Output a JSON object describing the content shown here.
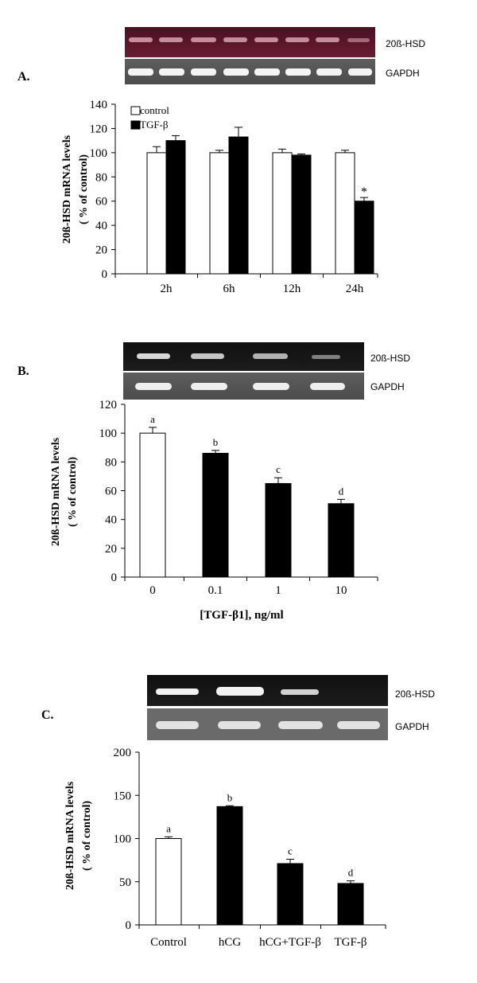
{
  "chart_data": [
    {
      "type": "bar",
      "panel_label": "A.",
      "categories": [
        "2h",
        "6h",
        "12h",
        "24h"
      ],
      "series": [
        {
          "name": "control",
          "values": [
            100,
            100,
            100,
            100
          ],
          "errors": [
            5,
            2,
            3,
            2
          ],
          "color": "#ffffff"
        },
        {
          "name": "TGF-β",
          "values": [
            110,
            113,
            98,
            60
          ],
          "errors": [
            4,
            8,
            1,
            3
          ],
          "color": "#000000"
        }
      ],
      "annotations": [
        "*"
      ],
      "ylabel": "20ß-HSD  mRNA levels",
      "ylabel2": "( % of control)",
      "xlabel": "",
      "ylim": [
        0,
        140
      ],
      "yticks": [
        "0",
        "20",
        "40",
        "60",
        "80",
        "100",
        "120",
        "140"
      ],
      "legend_position": "top-left",
      "gel_labels": [
        "20ß-HSD",
        "GAPDH"
      ]
    },
    {
      "type": "bar",
      "panel_label": "B.",
      "categories": [
        "0",
        "0.1",
        "1",
        "10"
      ],
      "series": [
        {
          "values": [
            100,
            86,
            65,
            51
          ],
          "errors": [
            4,
            2,
            4,
            3
          ]
        }
      ],
      "colors": [
        "#ffffff",
        "#000000",
        "#000000",
        "#000000"
      ],
      "bar_letters": [
        "a",
        "b",
        "c",
        "d"
      ],
      "ylabel": "20ß-HSD  mRNA levels",
      "ylabel2": "( % of control)",
      "xlabel": "[TGF-β1], ng/ml",
      "ylim": [
        0,
        120
      ],
      "yticks": [
        "0",
        "20",
        "40",
        "60",
        "80",
        "100",
        "120"
      ],
      "gel_labels": [
        "20ß-HSD",
        "GAPDH"
      ]
    },
    {
      "type": "bar",
      "panel_label": "C.",
      "categories": [
        "Control",
        "hCG",
        "hCG+TGF-β",
        "TGF-β"
      ],
      "series": [
        {
          "values": [
            100,
            137,
            71,
            48
          ],
          "errors": [
            2,
            1,
            5,
            3
          ]
        }
      ],
      "colors": [
        "#ffffff",
        "#000000",
        "#000000",
        "#000000"
      ],
      "bar_letters": [
        "a",
        "b",
        "c",
        "d"
      ],
      "ylabel": "20ß-HSD  mRNA levels",
      "ylabel2": "( % of control)",
      "xlabel": "",
      "ylim": [
        0,
        200
      ],
      "yticks": [
        "0",
        "50",
        "100",
        "150",
        "200"
      ],
      "gel_labels": [
        "20ß-HSD",
        "GAPDH"
      ]
    }
  ]
}
